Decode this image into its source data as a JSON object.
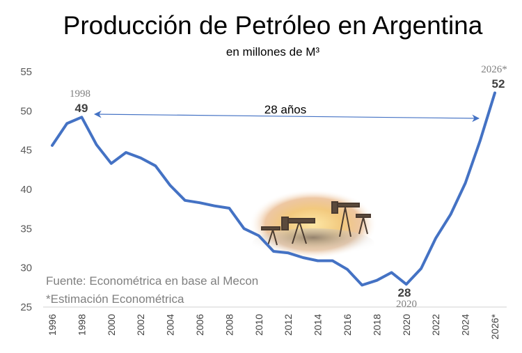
{
  "chart_data": {
    "type": "line",
    "title": "Producción de Petróleo en Argentina",
    "subtitle": "en millones de M³",
    "x": [
      1996,
      1997,
      1998,
      1999,
      2000,
      2001,
      2002,
      2003,
      2004,
      2005,
      2006,
      2007,
      2008,
      2009,
      2010,
      2011,
      2012,
      2013,
      2014,
      2015,
      2016,
      2017,
      2018,
      2019,
      2020,
      2021,
      2022,
      2023,
      2024,
      2025,
      2026
    ],
    "values": [
      45.6,
      48.4,
      49.2,
      45.7,
      43.3,
      44.7,
      44.0,
      43.0,
      40.5,
      38.6,
      38.3,
      37.9,
      37.6,
      35.0,
      34.1,
      32.1,
      31.9,
      31.3,
      30.9,
      30.9,
      29.8,
      27.8,
      28.4,
      29.4,
      27.9,
      29.9,
      33.8,
      36.8,
      40.8,
      46.2,
      52.3
    ],
    "ylim": [
      25,
      55
    ],
    "yticks": [
      "25",
      "30",
      "35",
      "40",
      "45",
      "50",
      "55"
    ],
    "xticks": [
      "1996",
      "1998",
      "2000",
      "2002",
      "2004",
      "2006",
      "2008",
      "2010",
      "2012",
      "2014",
      "2016",
      "2018",
      "2020",
      "2022",
      "2024",
      "2026*"
    ],
    "line_color": "#4472c4",
    "grid": false,
    "annotations": {
      "peak_year": "1998",
      "peak_value": "49",
      "low_value": "28",
      "low_year": "2020",
      "end_year": "2026*",
      "end_value": "52",
      "span_label": "28 años"
    },
    "source_lines": [
      "Fuente: Econométrica en base al Mecon",
      "*Estimación Econométrica"
    ]
  }
}
